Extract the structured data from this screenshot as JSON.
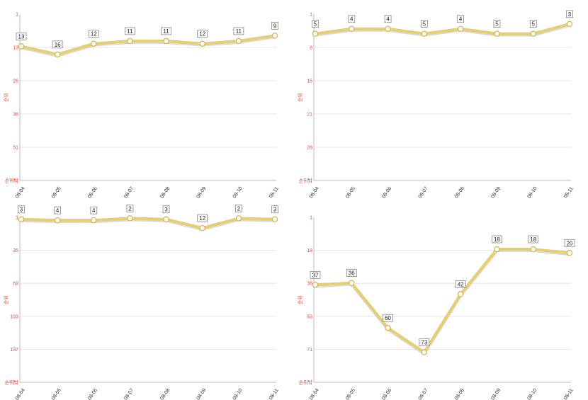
{
  "colors": {
    "line": "#e6cf6e",
    "line_shadow": "#b8b8c8",
    "marker_fill": "#ffffff",
    "marker_stroke": "#d4b84e",
    "grid": "#e6e6e6",
    "axis": "#bbbbbb",
    "ytick": "#e0493c",
    "xtick": "#333333",
    "label_border": "#777777"
  },
  "chart_data": [
    {
      "type": "line",
      "y_reversed": true,
      "ylabel": "순위",
      "yticks": [
        "1",
        "13",
        "26",
        "38",
        "51",
        "순위밖"
      ],
      "ylim": [
        1,
        63
      ],
      "categories": [
        "08-04",
        "08-05",
        "08-06",
        "08-07",
        "08-08",
        "08-09",
        "08-10",
        "08-11"
      ],
      "values": [
        13,
        16,
        12,
        11,
        11,
        12,
        11,
        9
      ],
      "data_labels": [
        "13",
        "16",
        "12",
        "11",
        "11",
        "12",
        "11",
        "9"
      ],
      "grid": true
    },
    {
      "type": "line",
      "y_reversed": true,
      "ylabel": "순위",
      "yticks": [
        "1",
        "8",
        "15",
        "21",
        "28",
        "순위밖"
      ],
      "ylim": [
        1,
        35
      ],
      "categories": [
        "08-04",
        "08-05",
        "08-06",
        "08-07",
        "08-08",
        "08-09",
        "08-10",
        "08-11"
      ],
      "values": [
        5,
        4,
        4,
        5,
        4,
        5,
        5,
        3
      ],
      "data_labels": [
        "5",
        "4",
        "4",
        "5",
        "4",
        "5",
        "5",
        "3"
      ],
      "grid": true
    },
    {
      "type": "line",
      "y_reversed": true,
      "ylabel": "순위",
      "yticks": [
        "1",
        "35",
        "69",
        "103",
        "137",
        "순위밖"
      ],
      "ylim": [
        1,
        171
      ],
      "categories": [
        "08-04",
        "08-05",
        "08-06",
        "08-07",
        "08-08",
        "08-09",
        "08-10",
        "08-11"
      ],
      "values": [
        3,
        4,
        4,
        2,
        3,
        12,
        2,
        3
      ],
      "data_labels": [
        "3",
        "4",
        "4",
        "2",
        "3",
        "12",
        "2",
        "3"
      ],
      "grid": true
    },
    {
      "type": "line",
      "y_reversed": true,
      "ylabel": "순위",
      "yticks": [
        "1",
        "18",
        "36",
        "53",
        "71",
        "순위밖"
      ],
      "ylim": [
        1,
        89
      ],
      "categories": [
        "08-04",
        "08-05",
        "08-06",
        "08-07",
        "08-08",
        "08-09",
        "08-10",
        "08-11"
      ],
      "values": [
        37,
        36,
        60,
        73,
        42,
        18,
        18,
        20
      ],
      "data_labels": [
        "37",
        "36",
        "60",
        "73",
        "42",
        "18",
        "18",
        "20"
      ],
      "grid": true
    }
  ]
}
